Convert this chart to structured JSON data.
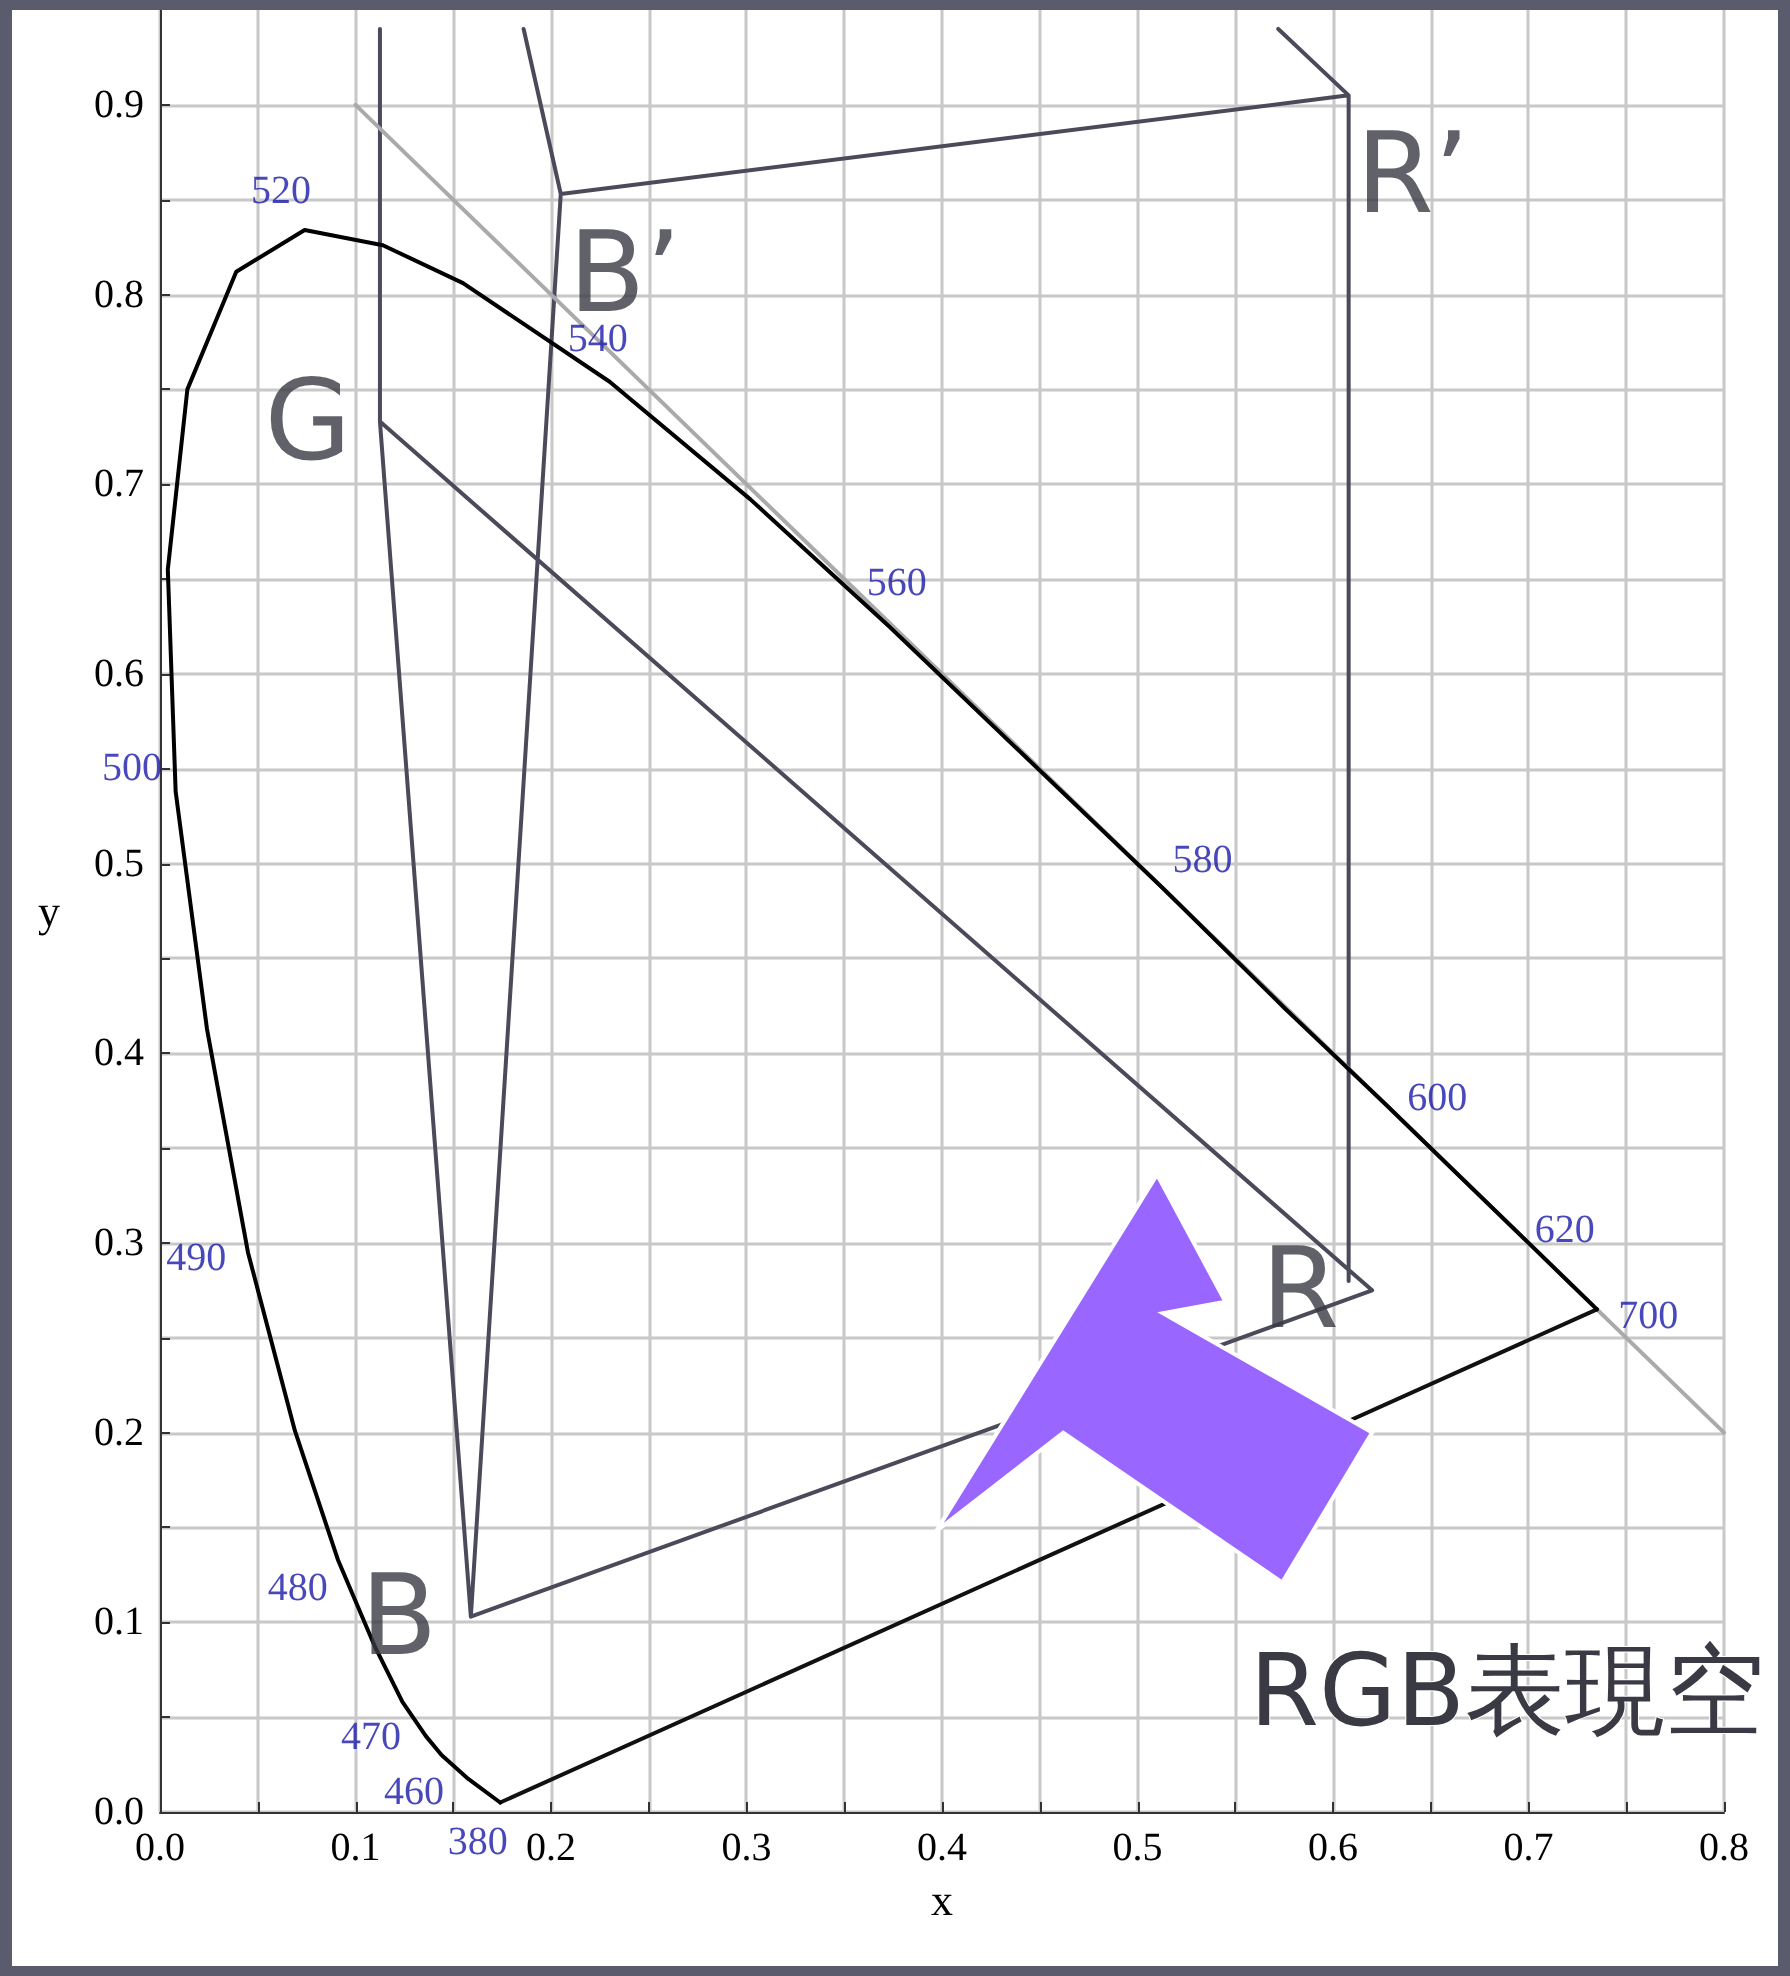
{
  "chart_data": {
    "type": "line",
    "xlabel": "x",
    "ylabel": "y",
    "xlim": [
      0,
      0.8
    ],
    "ylim": [
      0,
      0.95
    ],
    "xticks": [
      {
        "value": 0,
        "label": "0.0"
      },
      {
        "value": 0.05,
        "label": null
      },
      {
        "value": 0.1,
        "label": "0.1"
      },
      {
        "value": 0.15,
        "label": null
      },
      {
        "value": 0.2,
        "label": "0.2"
      },
      {
        "value": 0.25,
        "label": null
      },
      {
        "value": 0.3,
        "label": "0.3"
      },
      {
        "value": 0.35,
        "label": null
      },
      {
        "value": 0.4,
        "label": "0.4"
      },
      {
        "value": 0.45,
        "label": null
      },
      {
        "value": 0.5,
        "label": "0.5"
      },
      {
        "value": 0.55,
        "label": null
      },
      {
        "value": 0.6,
        "label": "0.6"
      },
      {
        "value": 0.65,
        "label": null
      },
      {
        "value": 0.7,
        "label": "0.7"
      },
      {
        "value": 0.75,
        "label": null
      },
      {
        "value": 0.8,
        "label": "0.8"
      }
    ],
    "yticks": [
      {
        "value": 0,
        "label": "0.0"
      },
      {
        "value": 0.05,
        "label": null
      },
      {
        "value": 0.1,
        "label": "0.1"
      },
      {
        "value": 0.15,
        "label": null
      },
      {
        "value": 0.2,
        "label": "0.2"
      },
      {
        "value": 0.25,
        "label": null
      },
      {
        "value": 0.3,
        "label": "0.3"
      },
      {
        "value": 0.35,
        "label": null
      },
      {
        "value": 0.4,
        "label": "0.4"
      },
      {
        "value": 0.45,
        "label": null
      },
      {
        "value": 0.5,
        "label": "0.5"
      },
      {
        "value": 0.55,
        "label": null
      },
      {
        "value": 0.6,
        "label": "0.6"
      },
      {
        "value": 0.65,
        "label": null
      },
      {
        "value": 0.7,
        "label": "0.7"
      },
      {
        "value": 0.75,
        "label": null
      },
      {
        "value": 0.8,
        "label": "0.8"
      },
      {
        "value": 0.85,
        "label": null
      },
      {
        "value": 0.9,
        "label": "0.9"
      }
    ],
    "grid": true,
    "marker": "none",
    "line_style": "solid",
    "series": [
      {
        "color": "#000000",
        "x": [
          0.174,
          0.157,
          0.144,
          0.136,
          0.124,
          0.11,
          0.091,
          0.069,
          0.045,
          0.024,
          0.008,
          0.004,
          0.014,
          0.039,
          0.074,
          0.114,
          0.155,
          0.23,
          0.302,
          0.373,
          0.444,
          0.513,
          0.575,
          0.627,
          0.666,
          0.692,
          0.719,
          0.735
        ],
        "values": [
          0.005,
          0.018,
          0.03,
          0.04,
          0.058,
          0.087,
          0.133,
          0.201,
          0.295,
          0.413,
          0.538,
          0.655,
          0.75,
          0.812,
          0.834,
          0.826,
          0.806,
          0.754,
          0.692,
          0.625,
          0.555,
          0.487,
          0.424,
          0.373,
          0.334,
          0.308,
          0.281,
          0.265
        ]
      },
      {
        "color": "#111111",
        "x": [
          0.735,
          0.174
        ],
        "values": [
          0.265,
          0.005
        ]
      },
      {
        "color": "#aaaaaa",
        "x": [
          0.1,
          0.8
        ],
        "values": [
          0.9,
          0.2
        ]
      },
      {
        "color": "#4a4a5a",
        "x": [
          0.1125,
          0.1125,
          0.62,
          0.159,
          0.1125,
          0.159,
          0.205,
          0.186,
          0.205,
          0.608,
          0.572,
          0.608,
          0.608
        ],
        "values": [
          0.94,
          0.733,
          0.275,
          0.103,
          0.733,
          0.103,
          0.853,
          0.94,
          0.853,
          0.905,
          0.94,
          0.905,
          0.28
        ]
      }
    ],
    "annotations": [
      {
        "text": "380",
        "x": 0.174,
        "y": 0.005
      },
      {
        "text": "460",
        "x": 0.144,
        "y": 0.03
      },
      {
        "text": "470",
        "x": 0.124,
        "y": 0.058
      },
      {
        "text": "480",
        "x": 0.091,
        "y": 0.133
      },
      {
        "text": "490",
        "x": 0.045,
        "y": 0.295
      },
      {
        "text": "500",
        "x": 0.008,
        "y": 0.538
      },
      {
        "text": "520",
        "x": 0.074,
        "y": 0.834
      },
      {
        "text": "540",
        "x": 0.23,
        "y": 0.754
      },
      {
        "text": "560",
        "x": 0.373,
        "y": 0.625
      },
      {
        "text": "580",
        "x": 0.513,
        "y": 0.487
      },
      {
        "text": "600",
        "x": 0.627,
        "y": 0.373
      },
      {
        "text": "620",
        "x": 0.692,
        "y": 0.308
      },
      {
        "text": "700",
        "x": 0.735,
        "y": 0.265
      },
      {
        "text": "G",
        "x": 0.1125,
        "y": 0.733
      },
      {
        "text": "B",
        "x": 0.159,
        "y": 0.103
      },
      {
        "text": "R",
        "x": 0.62,
        "y": 0.275
      },
      {
        "text": "B’",
        "x": 0.205,
        "y": 0.853
      },
      {
        "text": "R’",
        "x": 0.608,
        "y": 0.905
      },
      "RGB表現空"
    ]
  }
}
